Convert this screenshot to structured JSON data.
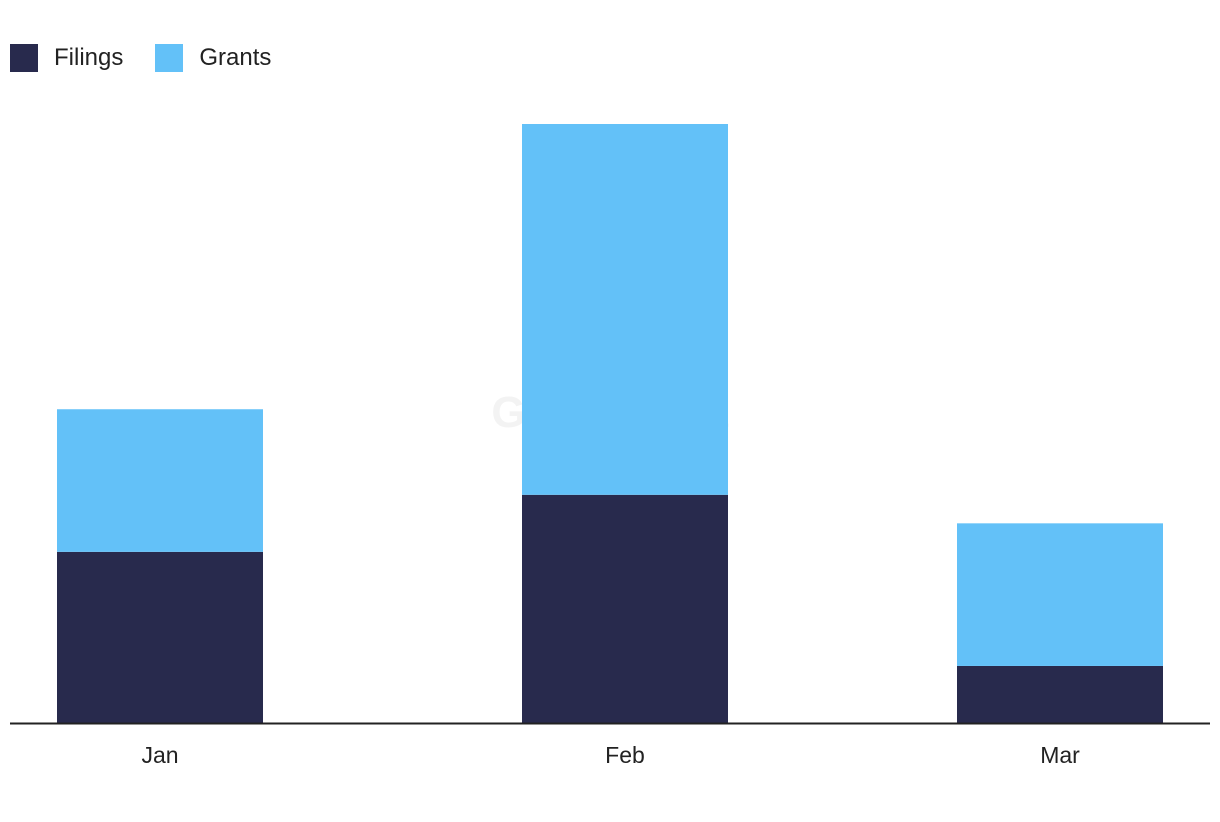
{
  "chart_data": {
    "type": "bar",
    "stacked": true,
    "title": "",
    "xlabel": "",
    "ylabel": "",
    "categories": [
      "Jan",
      "Feb",
      "Mar"
    ],
    "series": [
      {
        "name": "Filings",
        "color": "#282a4d",
        "values": [
          6,
          8,
          2
        ]
      },
      {
        "name": "Grants",
        "color": "#63c1f8",
        "values": [
          5,
          13,
          5
        ]
      }
    ],
    "ylim": [
      0,
      21
    ],
    "grid": false,
    "legend_position": "top-left"
  },
  "watermark": "GlobalData"
}
